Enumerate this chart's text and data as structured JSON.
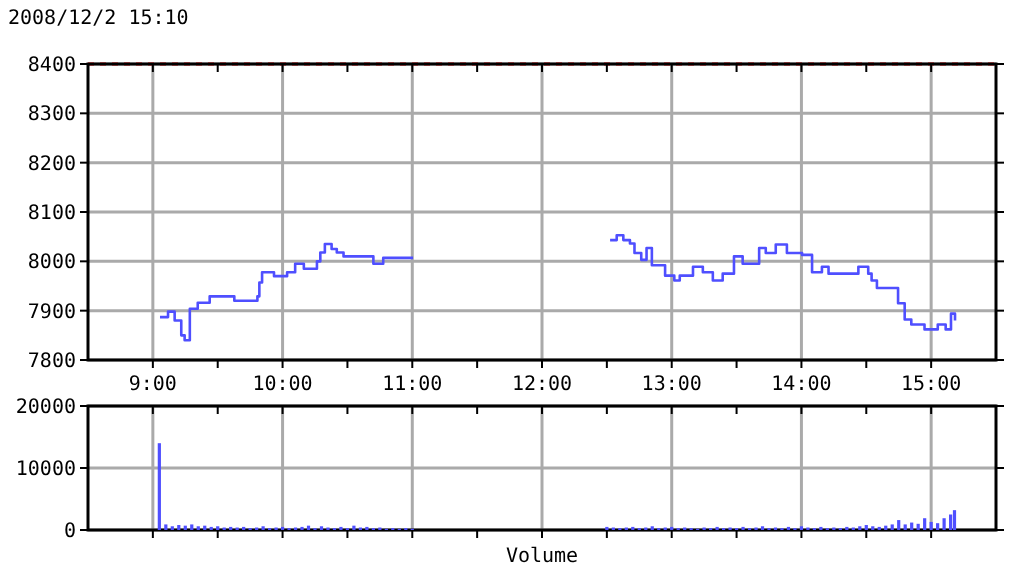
{
  "chart_data": [
    {
      "type": "step",
      "subtitle": "2008/12/2 15:10",
      "xlim": [
        8.5,
        15.5
      ],
      "ylim": [
        7800,
        8400
      ],
      "xticks": [
        {
          "value": 9,
          "label": "9:00"
        },
        {
          "value": 9.5,
          "label": null
        },
        {
          "value": 10,
          "label": "10:00"
        },
        {
          "value": 10.5,
          "label": null
        },
        {
          "value": 11,
          "label": "11:00"
        },
        {
          "value": 11.5,
          "label": null
        },
        {
          "value": 12,
          "label": "12:00"
        },
        {
          "value": 12.5,
          "label": null
        },
        {
          "value": 13,
          "label": "13:00"
        },
        {
          "value": 13.5,
          "label": null
        },
        {
          "value": 14,
          "label": "14:00"
        },
        {
          "value": 14.5,
          "label": null
        },
        {
          "value": 15,
          "label": "15:00"
        }
      ],
      "yticks": [
        7800,
        7900,
        8000,
        8100,
        8200,
        8300,
        8400
      ],
      "grid": true,
      "ref_lines": [
        {
          "axis": "y",
          "value": 8400,
          "color": "#ff0000",
          "line_style": "dashed"
        }
      ],
      "series": [
        {
          "color": "#4f4fff",
          "x": [
            9.055,
            9.117,
            9.168,
            9.219,
            9.245,
            9.285,
            9.346,
            9.438,
            9.628,
            9.806,
            9.821,
            9.842,
            9.934,
            10.035,
            10.097,
            10.164,
            10.265,
            10.291,
            10.326,
            10.378,
            10.418,
            10.47,
            10.7,
            10.776,
            11.006,
            11.5,
            12.525,
            12.576,
            12.627,
            12.678,
            12.713,
            12.765,
            12.806,
            12.847,
            12.949,
            13.02,
            13.062,
            13.164,
            13.24,
            13.317,
            13.393,
            13.48,
            13.547,
            13.674,
            13.725,
            13.802,
            13.888,
            14.005,
            14.082,
            14.158,
            14.209,
            14.439,
            14.515,
            14.541,
            14.582,
            14.72,
            14.745,
            14.796,
            14.847,
            14.949,
            15.051,
            15.112,
            15.153,
            15.184
          ],
          "values": [
            7887,
            7898,
            7880,
            7850,
            7840,
            7904,
            7916,
            7929,
            7920,
            7929,
            7957,
            7978,
            7970,
            7978,
            7995,
            7985,
            8000,
            8018,
            8035,
            8025,
            8018,
            8010,
            7995,
            8007,
            8007,
            null,
            8043,
            8053,
            8043,
            8036,
            8017,
            8003,
            8027,
            7992,
            7971,
            7961,
            7971,
            7989,
            7978,
            7961,
            7975,
            8010,
            7995,
            8027,
            8017,
            8034,
            8017,
            8013,
            7978,
            7989,
            7975,
            7989,
            7975,
            7961,
            7946,
            7946,
            7915,
            7882,
            7872,
            7862,
            7872,
            7862,
            7894,
            7880
          ]
        }
      ]
    },
    {
      "type": "bar",
      "xlabel": "Volume",
      "xlim": [
        8.5,
        15.5
      ],
      "ylim": [
        0,
        20000
      ],
      "tick_labels": "y",
      "grid": true,
      "xticks": [
        {
          "value": 9,
          "label": null
        },
        {
          "value": 9.5,
          "label": null
        },
        {
          "value": 10,
          "label": null
        },
        {
          "value": 10.5,
          "label": null
        },
        {
          "value": 11,
          "label": null
        },
        {
          "value": 11.5,
          "label": null
        },
        {
          "value": 12,
          "label": null
        },
        {
          "value": 12.5,
          "label": null
        },
        {
          "value": 13,
          "label": null
        },
        {
          "value": 13.5,
          "label": null
        },
        {
          "value": 14,
          "label": null
        },
        {
          "value": 14.5,
          "label": null
        },
        {
          "value": 15,
          "label": null
        }
      ],
      "yticks": [
        0,
        10000,
        20000
      ],
      "series": [
        {
          "color": "#4f4fff",
          "x": [
            9.05,
            9.1,
            9.15,
            9.2,
            9.25,
            9.3,
            9.35,
            9.4,
            9.45,
            9.5,
            9.55,
            9.6,
            9.65,
            9.7,
            9.75,
            9.8,
            9.85,
            9.9,
            9.95,
            10.0,
            10.05,
            10.1,
            10.15,
            10.2,
            10.25,
            10.3,
            10.35,
            10.4,
            10.45,
            10.5,
            10.55,
            10.6,
            10.65,
            10.7,
            10.75,
            10.8,
            10.85,
            10.9,
            10.95,
            11.0,
            12.5,
            12.55,
            12.6,
            12.65,
            12.7,
            12.75,
            12.8,
            12.85,
            12.9,
            12.95,
            13.0,
            13.05,
            13.1,
            13.15,
            13.2,
            13.25,
            13.3,
            13.35,
            13.4,
            13.45,
            13.5,
            13.55,
            13.6,
            13.65,
            13.7,
            13.75,
            13.8,
            13.85,
            13.9,
            13.95,
            14.0,
            14.05,
            14.1,
            14.15,
            14.2,
            14.25,
            14.3,
            14.35,
            14.4,
            14.45,
            14.5,
            14.55,
            14.6,
            14.65,
            14.7,
            14.75,
            14.8,
            14.85,
            14.9,
            14.95,
            15.0,
            15.05,
            15.1,
            15.15,
            15.18
          ],
          "values": [
            14000,
            900,
            600,
            800,
            700,
            900,
            600,
            700,
            500,
            600,
            400,
            500,
            400,
            500,
            300,
            400,
            600,
            300,
            400,
            500,
            300,
            400,
            500,
            700,
            300,
            600,
            400,
            300,
            500,
            300,
            700,
            400,
            500,
            300,
            400,
            200,
            300,
            200,
            300,
            200,
            500,
            400,
            300,
            400,
            500,
            300,
            400,
            600,
            300,
            400,
            500,
            300,
            400,
            300,
            200,
            400,
            300,
            500,
            300,
            400,
            300,
            500,
            300,
            400,
            600,
            300,
            400,
            300,
            500,
            300,
            600,
            400,
            300,
            500,
            300,
            400,
            300,
            500,
            400,
            600,
            800,
            600,
            500,
            700,
            900,
            1600,
            900,
            1200,
            1000,
            1900,
            1300,
            1100,
            1900,
            2500,
            3200
          ]
        }
      ]
    }
  ]
}
